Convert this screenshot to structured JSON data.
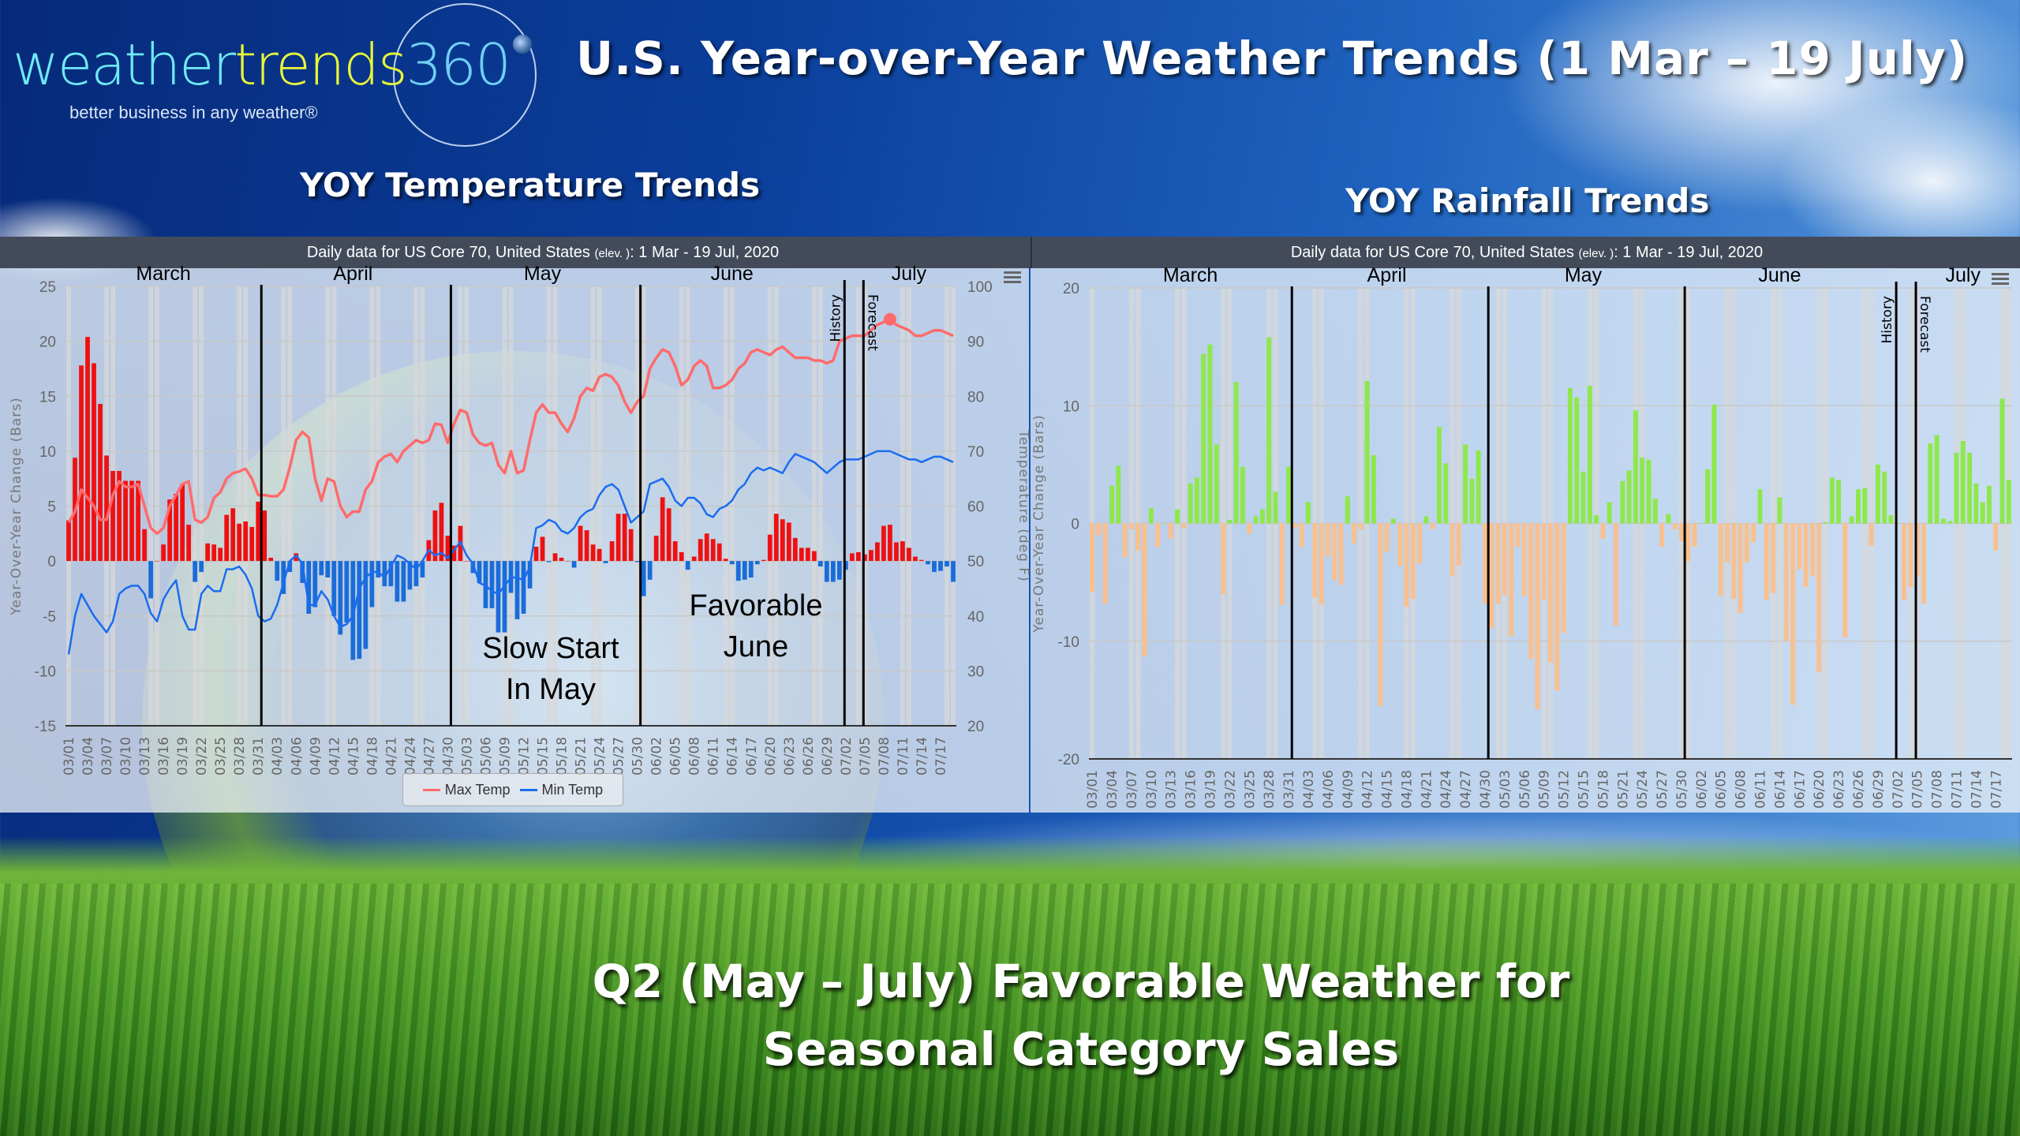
{
  "logo": {
    "part1": "weather",
    "part2": "trends",
    "part3": "360",
    "tagline": "better business in any weather®"
  },
  "title": "U.S. Year-over-Year Weather Trends (1 Mar – 19 July)",
  "temp_section_title": "YOY Temperature Trends",
  "rain_section_title": "YOY Rainfall Trends",
  "bottom_text": {
    "line1": "Q2 (May – July) Favorable Weather for",
    "line2": "Seasonal Category Sales"
  },
  "annotations": {
    "slow_start": [
      "Slow Start",
      "In May"
    ],
    "favorable": [
      "Favorable",
      "June"
    ]
  },
  "colors": {
    "max_temp": "#ff6b6b",
    "min_temp": "#1a6cf0",
    "temp_pos_bar": "#f01010",
    "temp_neg_bar": "#1a6cd8",
    "rain_pos_bar": "#8ee84c",
    "rain_neg_bar": "#f9c08f",
    "weekend_band": "#d8d8d8",
    "header": "#434b5a"
  },
  "chart_data": [
    {
      "id": "temperature",
      "type": "bar+line",
      "header": {
        "main": "Daily data for US Core 70, United States",
        "small": "(elev. )",
        "range": ": 1 Mar - 19 Jul, 2020"
      },
      "ylabel": "Year-Over-Year Change (Bars)",
      "y2label": "Temperature (deg F)",
      "ylim": [
        -15,
        25
      ],
      "yticks": [
        25,
        20,
        15,
        10,
        5,
        0,
        -5,
        -10,
        -15
      ],
      "y2lim": [
        20,
        100
      ],
      "y2ticks": [
        100,
        90,
        80,
        70,
        60,
        50,
        40,
        30,
        20
      ],
      "months": [
        "March",
        "April",
        "May",
        "June",
        "July"
      ],
      "month_lines": [
        "03/31",
        "04/30",
        "05/30"
      ],
      "history_line": {
        "date": "07/02",
        "label": "History"
      },
      "forecast_line": {
        "date": "07/05",
        "label": "Forecast"
      },
      "grid": true,
      "legend": {
        "position": "bottom",
        "items": [
          "Max Temp",
          "Min Temp"
        ]
      },
      "bars": {
        "mar": [
          3.7,
          9.4,
          17.8,
          20.4,
          18,
          14.3,
          9.6,
          8.2,
          8.2,
          7.3,
          7.3,
          7.3,
          2.9,
          -3.4,
          0,
          1.5,
          5.6,
          6.1,
          7,
          3.3,
          -1.9,
          -1,
          1.6,
          1.5,
          1.2,
          4.2,
          4.8,
          3.4,
          3.6,
          3.1,
          5.4
        ],
        "apr": [
          4.6,
          0.3,
          -1.8,
          -3,
          -1,
          0.7,
          -2,
          -4.8,
          -4.2,
          -1.3,
          -1.5,
          -5,
          -6.7,
          -5.6,
          -9,
          -8.9,
          -8,
          -4.2,
          -1.5,
          -2.3,
          -2.3,
          -3.7,
          -3.7,
          -2.6,
          -2.3,
          -1.5,
          1.9,
          4.6,
          5.3,
          2.3
        ],
        "may": [
          1.4,
          3.2,
          0,
          -1.1,
          -2,
          -4.3,
          -4.3,
          -6.5,
          -6.5,
          -2.9,
          -5.3,
          -4.8,
          -2.5,
          1.3,
          2.2,
          -0.1,
          0.7,
          0.3,
          0,
          -0.6,
          3.2,
          2.8,
          1.5,
          1.1,
          -0.2,
          1.8,
          4.3,
          4.3,
          2.9,
          -0.1,
          -3.2
        ],
        "jun": [
          -1.7,
          2.3,
          5.8,
          4.8,
          1.8,
          0.8,
          -0.8,
          0.4,
          2,
          2.5,
          2,
          1.6,
          0.2,
          -0.3,
          -1.8,
          -1.7,
          -1.5,
          -0.3,
          0.1,
          2.4,
          4.3,
          3.8,
          3.5,
          2.1,
          1.2,
          1.2,
          0.9,
          -0.5,
          -1.9,
          -1.9
        ],
        "jul": [
          -1.7,
          -0.8,
          0.7,
          0.8,
          0.6,
          1,
          1.7,
          3.2,
          3.3,
          1.7,
          1.8,
          1.2,
          0.4,
          0.1,
          -0.3,
          -1,
          -0.9,
          -0.5,
          -1.9
        ]
      },
      "max_temp": {
        "mar": [
          57,
          59,
          63,
          61.5,
          60,
          57.5,
          57.5,
          62,
          64.5,
          63.5,
          63.5,
          64,
          60,
          56,
          55,
          56,
          60,
          62,
          64,
          64.5,
          57.5,
          57,
          58,
          61.5,
          62.5,
          65,
          66,
          66.3,
          66.8,
          65,
          62
        ],
        "apr": [
          62,
          61.8,
          61.8,
          63,
          67,
          72,
          73.5,
          72.5,
          65,
          61,
          65,
          64.5,
          60,
          58,
          59,
          59,
          63,
          64.5,
          68,
          69,
          69.5,
          68,
          70,
          71,
          72,
          71.5,
          72,
          75,
          74.8,
          71.5
        ],
        "may": [
          75,
          77.5,
          77,
          73,
          71.5,
          71,
          71.5,
          67.5,
          66,
          70,
          66,
          66.5,
          72,
          77,
          78.5,
          77,
          77,
          75,
          73.5,
          76,
          80,
          81.5,
          81,
          83.5,
          84,
          83.5,
          82,
          79,
          77,
          79,
          80
        ],
        "jun": [
          85,
          87,
          88.5,
          88,
          85.5,
          82,
          83,
          85.5,
          86.5,
          85.5,
          81.5,
          81.5,
          82,
          83,
          85,
          86,
          88,
          88.5,
          88,
          87.5,
          88.5,
          89,
          88,
          87,
          87,
          87,
          86.5,
          86.5,
          86,
          86.5
        ],
        "jul": [
          90,
          90.5,
          91,
          91,
          91,
          92,
          93,
          93.5,
          94,
          93,
          92.5,
          92,
          91,
          91,
          91.5,
          92,
          92,
          91.5,
          91
        ]
      },
      "min_temp": {
        "mar": [
          33,
          40,
          44,
          42,
          40,
          38.5,
          37,
          39,
          44,
          45,
          45.5,
          45.5,
          44,
          40.5,
          39,
          43,
          45,
          46.5,
          40,
          37.5,
          37.5,
          44,
          45.5,
          44.5,
          44.5,
          48.5,
          48.5,
          49,
          47.5,
          45,
          40
        ],
        "apr": [
          39,
          39.5,
          42,
          46,
          50,
          51,
          49.5,
          42,
          42,
          44.5,
          43,
          40,
          38,
          38.5,
          40,
          45,
          47,
          48,
          48,
          47,
          49,
          51,
          50.5,
          49.5,
          48.5,
          50,
          52,
          51,
          51.5,
          50.5
        ],
        "may": [
          52,
          53.5,
          51,
          49.5,
          46,
          45.5,
          44.5,
          44,
          45.5,
          47,
          47,
          46.5,
          49,
          56,
          56.5,
          57.5,
          57,
          55.5,
          55,
          56,
          58,
          59,
          59.5,
          62,
          63.5,
          64,
          63,
          60,
          57,
          58,
          59
        ],
        "jun": [
          64,
          64.5,
          65,
          63.5,
          61,
          60,
          61.5,
          61.5,
          60.5,
          58.5,
          58,
          59.5,
          60,
          61,
          63,
          64,
          66,
          67,
          66.5,
          67,
          66.5,
          66,
          68,
          69.5,
          69,
          68.5,
          68,
          67,
          66,
          67
        ],
        "jul": [
          68,
          68.5,
          68.5,
          68.5,
          69,
          69.5,
          70,
          70,
          70,
          69.5,
          69,
          68.5,
          68.5,
          68,
          68.5,
          69,
          69,
          68.5,
          68
        ]
      }
    },
    {
      "id": "rainfall",
      "type": "bar",
      "header": {
        "main": "Daily data for US Core 70, United States",
        "small": "(elev. )",
        "range": ": 1 Mar - 19 Jul, 2020"
      },
      "ylabel": "Year-Over-Year Change (Bars)",
      "ylim": [
        -20,
        20
      ],
      "yticks": [
        20,
        10,
        0,
        -10,
        -20
      ],
      "months": [
        "March",
        "April",
        "May",
        "June",
        "July"
      ],
      "month_lines": [
        "03/31",
        "04/30",
        "05/30"
      ],
      "history_line": {
        "date": "07/02",
        "label": "History"
      },
      "forecast_line": {
        "date": "07/05",
        "label": "Forecast"
      },
      "grid": true,
      "bars": {
        "mar": [
          -5.8,
          -1,
          -6.8,
          3.2,
          4.9,
          -2.9,
          -0.5,
          -2.3,
          -11.3,
          1.3,
          -2,
          0,
          -1.3,
          1.2,
          -0.4,
          3.4,
          3.9,
          14.4,
          15.2,
          6.7,
          -6,
          0.3,
          12,
          4.8,
          -0.9,
          0.6,
          1.2,
          15.8,
          2.7,
          -6.9,
          4.8
        ],
        "apr": [
          -0.4,
          -2,
          1.8,
          -6.3,
          -6.9,
          -2.8,
          -4.8,
          -5.2,
          2.3,
          -1.7,
          -0.5,
          12.1,
          5.8,
          -15.5,
          -2.4,
          0.4,
          -3.6,
          -7.1,
          -6.4,
          -3.4,
          0.6,
          -0.5,
          8.2,
          5.1,
          -4.5,
          -3.6,
          6.7,
          3.8,
          6.2,
          -6.8
        ],
        "may": [
          -8.9,
          -6.8,
          -6.1,
          -9.6,
          -2,
          -6.2,
          -11.5,
          -15.8,
          -6.5,
          -11.8,
          -14.2,
          -9.3,
          11.5,
          10.7,
          4.4,
          11.7,
          0.7,
          -1.3,
          1.8,
          -8.7,
          3.6,
          4.5,
          9.6,
          5.6,
          5.4,
          2.1,
          -2,
          0.8,
          -0.5,
          -1.5,
          -3.2
        ],
        "jun": [
          -2,
          0,
          4.6,
          10.1,
          -6.2,
          -3.3,
          -6.4,
          -7.6,
          -3.3,
          -1.6,
          2.9,
          -6.5,
          -5.9,
          2.2,
          -10,
          -15.4,
          -3.9,
          -5.4,
          -4.5,
          -12.6,
          0.1,
          3.9,
          3.7,
          -9.7,
          0.6,
          2.9,
          3,
          -1.9,
          5,
          4.4
        ],
        "jul": [
          0.7,
          0,
          -6.5,
          -5.4,
          -4.5,
          -6.8,
          6.8,
          7.5,
          0.4,
          0.2,
          6,
          7,
          6,
          3.4,
          1.8,
          3.2,
          -2.3,
          10.6,
          3.7
        ]
      }
    }
  ],
  "dates": [
    "03/01",
    "03/02",
    "03/03",
    "03/04",
    "03/05",
    "03/06",
    "03/07",
    "03/08",
    "03/09",
    "03/10",
    "03/11",
    "03/12",
    "03/13",
    "03/14",
    "03/15",
    "03/16",
    "03/17",
    "03/18",
    "03/19",
    "03/20",
    "03/21",
    "03/22",
    "03/23",
    "03/24",
    "03/25",
    "03/26",
    "03/27",
    "03/28",
    "03/29",
    "03/30",
    "03/31",
    "04/01",
    "04/02",
    "04/03",
    "04/04",
    "04/05",
    "04/06",
    "04/07",
    "04/08",
    "04/09",
    "04/10",
    "04/11",
    "04/12",
    "04/13",
    "04/14",
    "04/15",
    "04/16",
    "04/17",
    "04/18",
    "04/19",
    "04/20",
    "04/21",
    "04/22",
    "04/23",
    "04/24",
    "04/25",
    "04/26",
    "04/27",
    "04/28",
    "04/29",
    "04/30",
    "05/01",
    "05/02",
    "05/03",
    "05/04",
    "05/05",
    "05/06",
    "05/07",
    "05/08",
    "05/09",
    "05/10",
    "05/11",
    "05/12",
    "05/13",
    "05/14",
    "05/15",
    "05/16",
    "05/17",
    "05/18",
    "05/19",
    "05/20",
    "05/21",
    "05/22",
    "05/23",
    "05/24",
    "05/25",
    "05/26",
    "05/27",
    "05/28",
    "05/29",
    "05/30",
    "05/31",
    "06/01",
    "06/02",
    "06/03",
    "06/04",
    "06/05",
    "06/06",
    "06/07",
    "06/08",
    "06/09",
    "06/10",
    "06/11",
    "06/12",
    "06/13",
    "06/14",
    "06/15",
    "06/16",
    "06/17",
    "06/18",
    "06/19",
    "06/20",
    "06/21",
    "06/22",
    "06/23",
    "06/24",
    "06/25",
    "06/26",
    "06/27",
    "06/28",
    "06/29",
    "06/30",
    "07/01",
    "07/02",
    "07/03",
    "07/04",
    "07/05",
    "07/06",
    "07/07",
    "07/08",
    "07/09",
    "07/10",
    "07/11",
    "07/12",
    "07/13",
    "07/14",
    "07/15",
    "07/16",
    "07/17",
    "07/18",
    "07/19"
  ]
}
